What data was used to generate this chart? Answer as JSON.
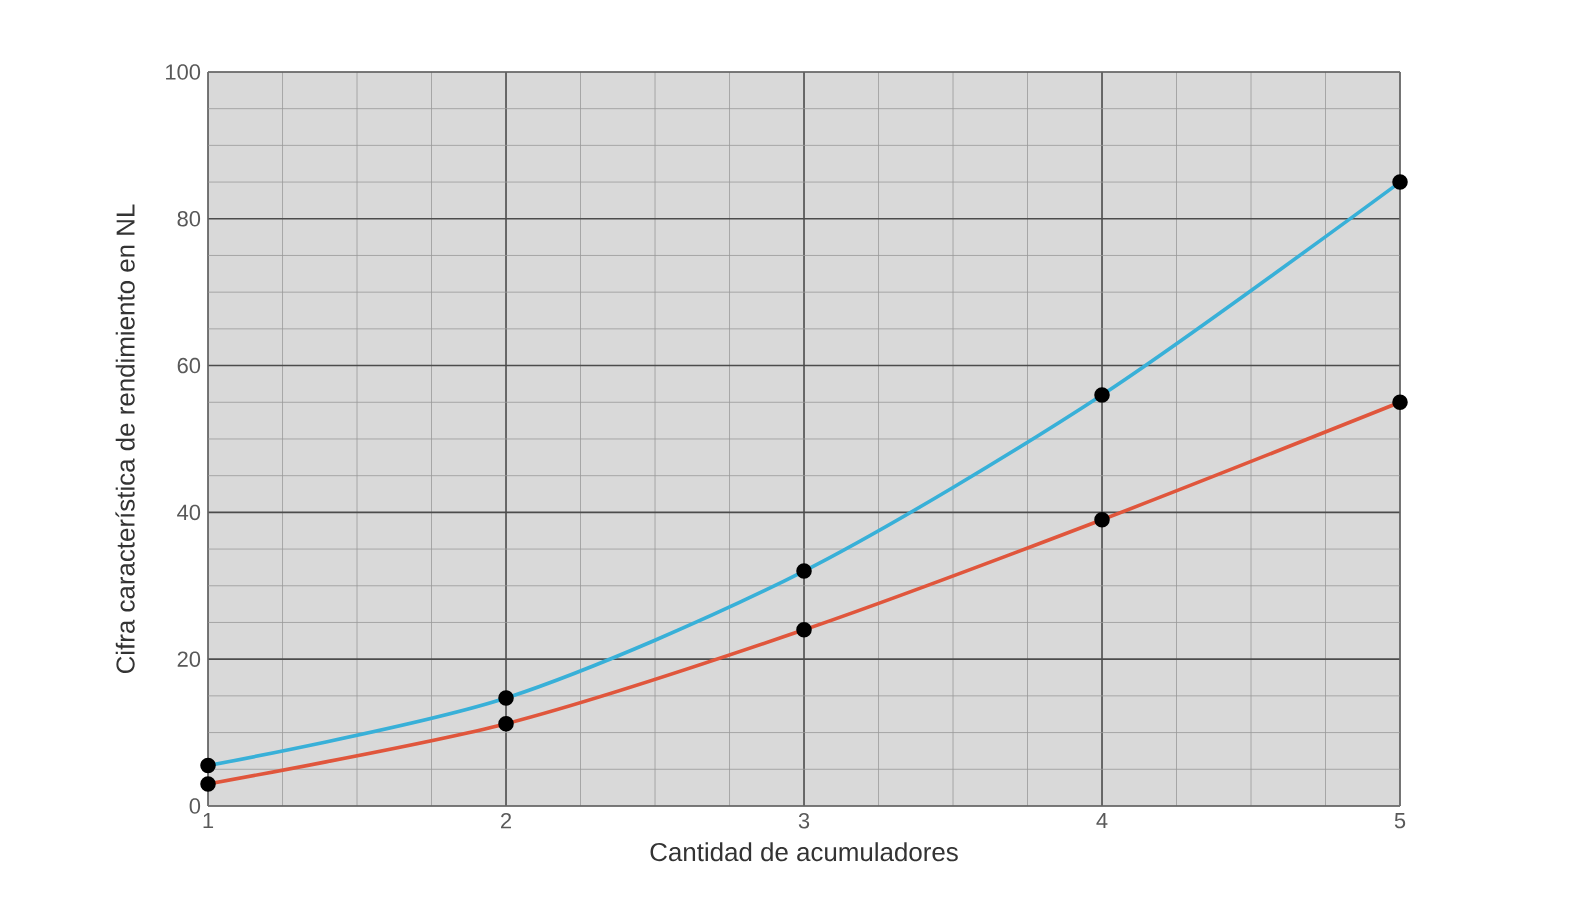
{
  "chart_data": {
    "type": "line",
    "xlabel": "Cantidad de acumuladores",
    "ylabel": "Cifra característica de rendimiento en NL",
    "x": [
      1,
      2,
      3,
      4,
      5
    ],
    "series": [
      {
        "color": "#38b0d8",
        "values": [
          5.5,
          14.7,
          32,
          56,
          85
        ]
      },
      {
        "color": "#e0563c",
        "values": [
          3,
          11.2,
          24,
          39,
          55
        ]
      }
    ],
    "xlim": [
      1,
      5
    ],
    "xticks": [
      1,
      2,
      3,
      4,
      5
    ],
    "ylim": [
      0,
      100
    ],
    "yticks": [
      0,
      20,
      40,
      60,
      80,
      100
    ],
    "grid": true,
    "marker": "circle"
  }
}
